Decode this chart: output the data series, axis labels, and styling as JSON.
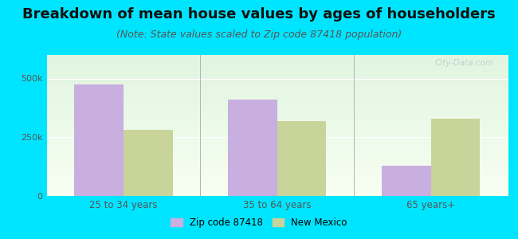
{
  "title": "Breakdown of mean house values by ages of householders",
  "subtitle": "(Note: State values scaled to Zip code 87418 population)",
  "categories": [
    "25 to 34 years",
    "35 to 64 years",
    "65 years+"
  ],
  "zip_values": [
    475000,
    410000,
    130000
  ],
  "state_values": [
    280000,
    320000,
    330000
  ],
  "zip_color": "#c9aee0",
  "state_color": "#c8d49a",
  "background_outer": "#00e5ff",
  "ylim": [
    0,
    600000
  ],
  "yticks": [
    0,
    250000,
    500000
  ],
  "ytick_labels": [
    "0",
    "250k",
    "500k"
  ],
  "legend_zip_label": "Zip code 87418",
  "legend_state_label": "New Mexico",
  "title_fontsize": 13,
  "subtitle_fontsize": 9,
  "bar_width": 0.32,
  "watermark": "City-Data.com"
}
